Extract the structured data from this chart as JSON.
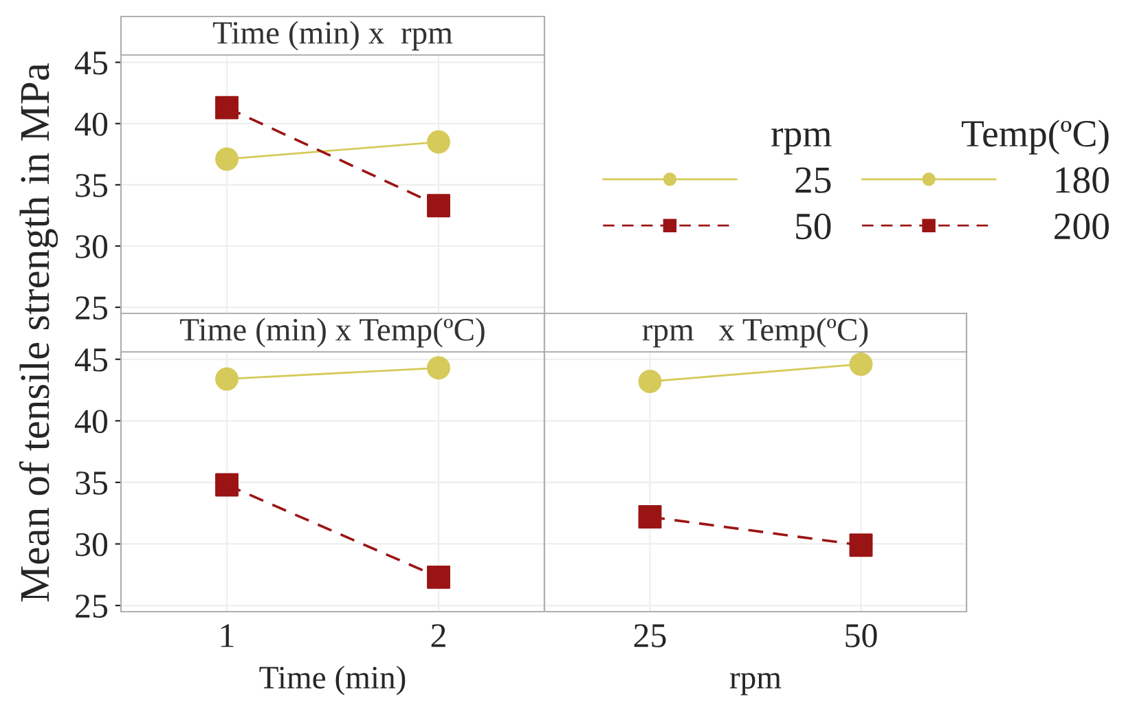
{
  "chart_data": [
    {
      "type": "line",
      "title": "Time (min) x  rpm",
      "categories": [
        "1",
        "2"
      ],
      "ylim": [
        24.5,
        45.6
      ],
      "yticks": [
        25,
        30,
        35,
        40,
        45
      ],
      "tick_labels": "y",
      "grid": true,
      "legend": "right",
      "legend_title": "rpm",
      "series": [
        {
          "name": "25",
          "color": "#d6ca5a",
          "marker": "circle",
          "line_style": "solid",
          "values": [
            37.1,
            38.5
          ]
        },
        {
          "name": "50",
          "color": "#9b1414",
          "marker": "square",
          "line_style": "dashed",
          "values": [
            41.3,
            33.3
          ]
        }
      ]
    },
    {
      "type": "line",
      "title": "Time (min) x Temp(ºC)",
      "xlabel": "Time (min)",
      "ylabel": "Mean of tensile strength in MPa",
      "categories": [
        "1",
        "2"
      ],
      "ylim": [
        24.5,
        45.6
      ],
      "yticks": [
        25,
        30,
        35,
        40,
        45
      ],
      "grid": true,
      "legend": "top right",
      "legend_title": "Temp(ºC)",
      "series": [
        {
          "name": "180",
          "color": "#d6ca5a",
          "marker": "circle",
          "line_style": "solid",
          "values": [
            43.4,
            44.3
          ]
        },
        {
          "name": "200",
          "color": "#9b1414",
          "marker": "square",
          "line_style": "dashed",
          "values": [
            34.8,
            27.3
          ]
        }
      ]
    },
    {
      "type": "line",
      "title": "rpm   x Temp(ºC)",
      "xlabel": "rpm",
      "categories": [
        "25",
        "50"
      ],
      "ylim": [
        24.5,
        45.6
      ],
      "yticks": [
        25,
        30,
        35,
        40,
        45
      ],
      "tick_labels": "x",
      "grid": true,
      "series": [
        {
          "color": "#d6ca5a",
          "marker": "circle",
          "line_style": "solid",
          "values": [
            43.2,
            44.6
          ]
        },
        {
          "color": "#9b1414",
          "marker": "square",
          "line_style": "dashed",
          "values": [
            32.2,
            29.9
          ]
        }
      ]
    }
  ]
}
